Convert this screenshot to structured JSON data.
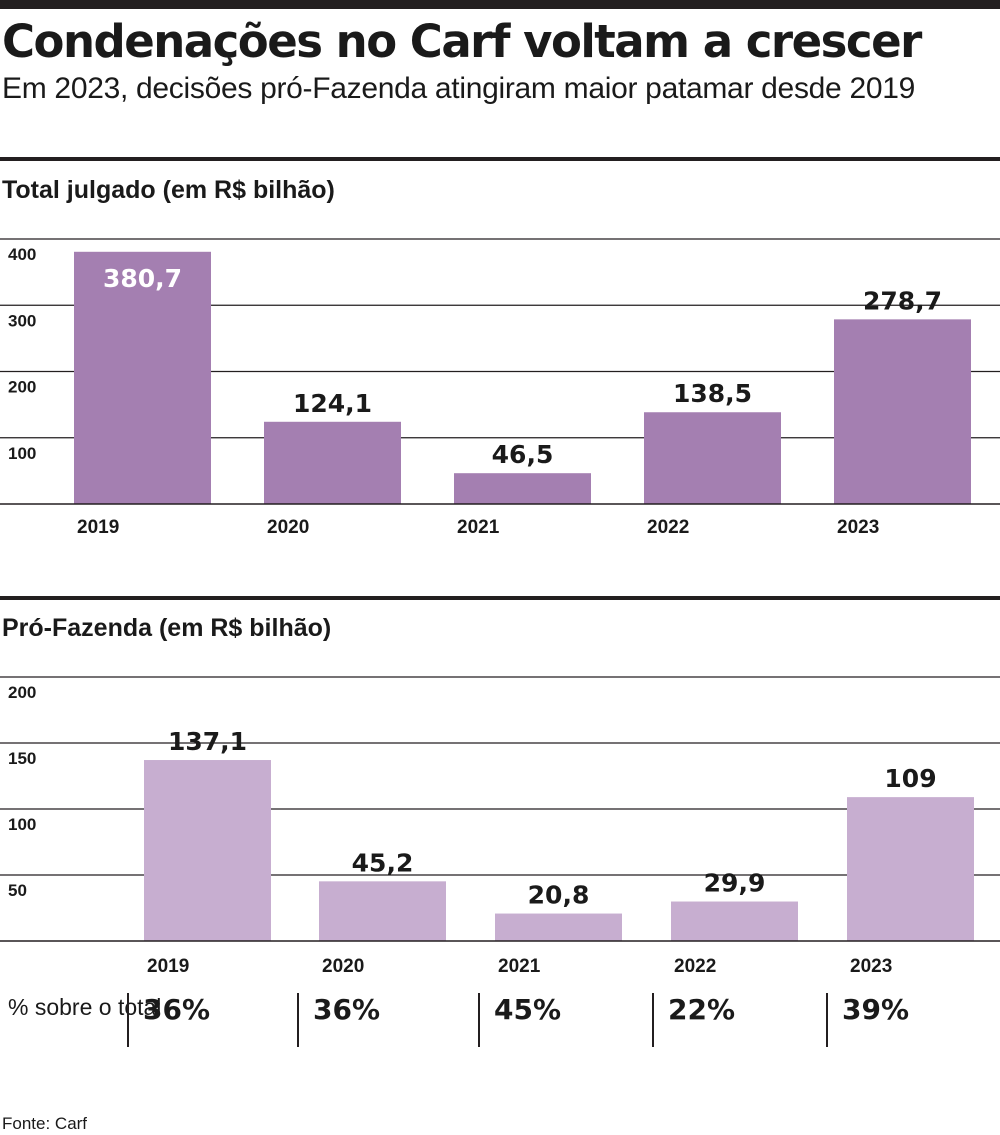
{
  "header": {
    "title": "Condenações no Carf voltam a crescer",
    "subtitle": "Em 2023, decisões pró-Fazenda atingiram maior patamar desde 2019"
  },
  "chart_data": [
    {
      "type": "bar",
      "title": "Total julgado (em R$ bilhão)",
      "categories": [
        "2019",
        "2020",
        "2021",
        "2022",
        "2023"
      ],
      "values": [
        380.7,
        124.1,
        46.5,
        138.5,
        278.7
      ],
      "value_labels": [
        "380,7",
        "124,1",
        "46,5",
        "138,5",
        "278,7"
      ],
      "yticks": [
        "100",
        "200",
        "300",
        "400"
      ],
      "ylim": [
        0,
        400
      ],
      "grid": true,
      "bar_color": "#a47fb1"
    },
    {
      "type": "bar",
      "title": "Pró-Fazenda (em R$ bilhão)",
      "categories": [
        "2019",
        "2020",
        "2021",
        "2022",
        "2023"
      ],
      "values": [
        137.1,
        45.2,
        20.8,
        29.9,
        109
      ],
      "value_labels": [
        "137,1",
        "45,2",
        "20,8",
        "29,9",
        "109"
      ],
      "yticks": [
        "50",
        "100",
        "150",
        "200"
      ],
      "ylim": [
        0,
        200
      ],
      "grid": true,
      "bar_color": "#c7aed0",
      "share_label": "% sobre o total",
      "share_values": [
        "36%",
        "36%",
        "45%",
        "22%",
        "39%"
      ]
    }
  ],
  "source": "Fonte: Carf"
}
